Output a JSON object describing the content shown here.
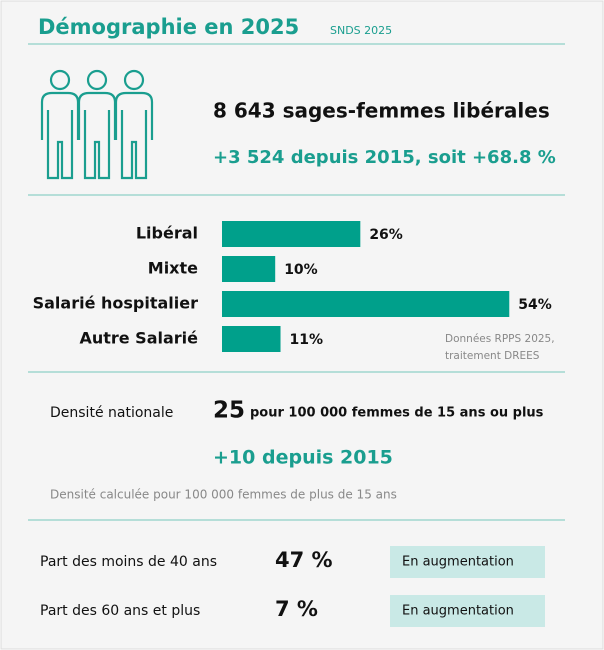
{
  "header": {
    "title": "Démographie en 2025",
    "source": "SNDS 2025"
  },
  "summary": {
    "headline": "8 643 sages-femmes libérales",
    "change": "+3 524 depuis 2015, soit +68.8 %"
  },
  "chart_data": {
    "type": "bar",
    "orientation": "horizontal",
    "categories": [
      "Libéral",
      "Mixte",
      "Salarié hospitalier",
      "Autre Salarié"
    ],
    "values": [
      26,
      10,
      54,
      11
    ],
    "value_labels": [
      "26%",
      "10%",
      "54%",
      "11%"
    ],
    "color": "#00a08b",
    "note": [
      "Données RPPS 2025,",
      "traitement DREES"
    ]
  },
  "density": {
    "label": "Densité nationale",
    "value": "25",
    "unit": "pour 100 000 femmes de 15 ans ou plus",
    "change": "+10 depuis 2015",
    "note": "Densité calculée pour 100 000 femmes de plus de 15 ans"
  },
  "indicators": [
    {
      "label": "Part des moins de 40 ans",
      "value": "47 %",
      "trend": "En augmentation"
    },
    {
      "label": "Part des 60 ans et plus",
      "value": "7 %",
      "trend": "En augmentation"
    }
  ]
}
